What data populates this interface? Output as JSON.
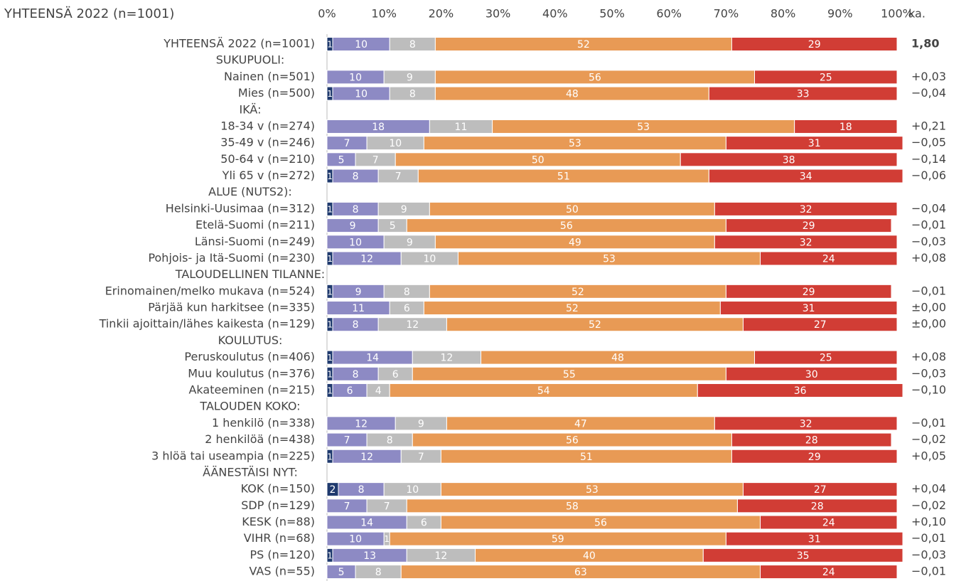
{
  "chart_data": {
    "type": "stacked_barh",
    "title": "YHTEENSÄ 2022 (n=1001)",
    "categories": [
      "YHTEENSÄ 2022 (n=1001)",
      "SUKUPUOLI:",
      "Nainen (n=501)",
      "Mies (n=500)",
      "IKÄ:",
      "18-34 v (n=274)",
      "35-49 v (n=246)",
      "50-64 v (n=210)",
      "Yli 65 v (n=272)",
      "ALUE (NUTS2):",
      "Helsinki-Uusimaa (n=312)",
      "Etelä-Suomi (n=211)",
      "Länsi-Suomi (n=249)",
      "Pohjois- ja Itä-Suomi (n=230)",
      "TALOUDELLINEN TILANNE:",
      "Erinomainen/melko mukava (n=524)",
      "Pärjää kun harkitsee (n=335)",
      "Tinkii ajoittain/lähes kaikesta (n=129)",
      "KOULUTUS:",
      "Peruskoulutus (n=406)",
      "Muu koulutus (n=376)",
      "Akateeminen (n=215)",
      "TALOUDEN KOKO:",
      "1 henkilö (n=338)",
      "2 henkilöä (n=438)",
      "3 hlöä tai useampia (n=225)",
      "ÄÄNESTÄISI NYT:",
      "KOK (n=150)",
      "SDP (n=129)",
      "KESK (n=88)",
      "VIHR (n=68)",
      "PS (n=120)",
      "VAS (n=55)"
    ],
    "series": [
      {
        "color": "#1f3a6e",
        "values": [
          1,
          null,
          0,
          1,
          null,
          0,
          0,
          0,
          1,
          null,
          1,
          0,
          0,
          1,
          null,
          1,
          0,
          1,
          null,
          1,
          1,
          1,
          null,
          0,
          0,
          1,
          null,
          2,
          0,
          0,
          0,
          1,
          0
        ]
      },
      {
        "color": "#8d8ac4",
        "values": [
          10,
          null,
          10,
          10,
          null,
          18,
          7,
          5,
          8,
          null,
          8,
          9,
          10,
          12,
          null,
          9,
          11,
          8,
          null,
          14,
          8,
          6,
          null,
          12,
          7,
          12,
          null,
          8,
          7,
          14,
          10,
          13,
          5
        ]
      },
      {
        "color": "#bdbdbd",
        "values": [
          8,
          null,
          9,
          8,
          null,
          11,
          10,
          7,
          7,
          null,
          9,
          5,
          9,
          10,
          null,
          8,
          6,
          12,
          null,
          12,
          6,
          4,
          null,
          9,
          8,
          7,
          null,
          10,
          7,
          6,
          1,
          12,
          8
        ]
      },
      {
        "color": "#e89a55",
        "values": [
          52,
          null,
          56,
          48,
          null,
          53,
          53,
          50,
          51,
          null,
          50,
          56,
          49,
          53,
          null,
          52,
          52,
          52,
          null,
          48,
          55,
          54,
          null,
          47,
          56,
          51,
          null,
          53,
          58,
          56,
          59,
          40,
          63
        ]
      },
      {
        "color": "#d13d35",
        "values": [
          29,
          null,
          25,
          33,
          null,
          18,
          31,
          38,
          34,
          null,
          32,
          29,
          32,
          24,
          null,
          29,
          31,
          27,
          null,
          25,
          30,
          36,
          null,
          32,
          28,
          29,
          null,
          27,
          28,
          24,
          31,
          35,
          24
        ]
      }
    ],
    "ka_header": "ka.",
    "ka": [
      "1,80",
      null,
      "+0,03",
      "−0,04",
      null,
      "+0,21",
      "−0,05",
      "−0,14",
      "−0,06",
      null,
      "−0,04",
      "−0,01",
      "−0,03",
      "+0,08",
      null,
      "−0,01",
      "±0,00",
      "±0,00",
      null,
      "+0,08",
      "−0,03",
      "−0,10",
      null,
      "−0,01",
      "−0,02",
      "+0,05",
      null,
      "+0,04",
      "−0,02",
      "+0,10",
      "−0,01",
      "−0,03",
      "−0,01"
    ],
    "xlim": [
      0,
      100
    ],
    "xticks": [
      {
        "value": 0,
        "label": "0%"
      },
      {
        "value": 10,
        "label": "10%"
      },
      {
        "value": 20,
        "label": "20%"
      },
      {
        "value": 30,
        "label": "30%"
      },
      {
        "value": 40,
        "label": "40%"
      },
      {
        "value": 50,
        "label": "50%"
      },
      {
        "value": 60,
        "label": "60%"
      },
      {
        "value": 70,
        "label": "70%"
      },
      {
        "value": 80,
        "label": "80%"
      },
      {
        "value": 90,
        "label": "90%"
      },
      {
        "value": 100,
        "label": "100%"
      }
    ]
  }
}
